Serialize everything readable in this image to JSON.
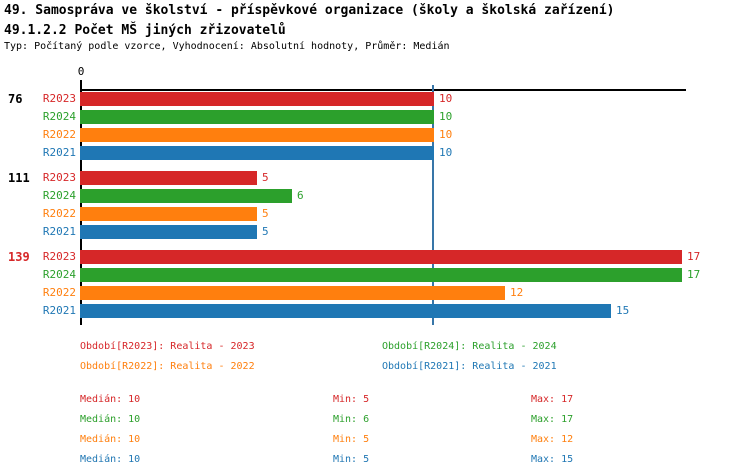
{
  "header": {
    "title": "49. Samospráva ve školství - příspěvkové organizace (školy a školská zařízení)",
    "subtitle": "49.1.2.2 Počet MŠ jiných zřizovatelů",
    "meta": "Typ: Počítaný podle vzorce, Vyhodnocení: Absolutní hodnoty, Průměr: Medián"
  },
  "colors": {
    "r2023": "#d62728",
    "r2024": "#2ca02c",
    "r2022": "#ff7f0e",
    "r2021": "#1f77b4",
    "axis": "#000000",
    "median_line": "#3876a8",
    "text": "#000000",
    "highlight_group_label": "#d62728"
  },
  "chart_data": {
    "type": "bar",
    "orientation": "horizontal",
    "title": "49.1.2.2 Počet MŠ jiných zřizovatelů",
    "x_axis": {
      "zero_label": "0",
      "min": 0,
      "max": 17
    },
    "median_line_value": 10,
    "grid": false,
    "legend_position": "bottom",
    "series_order": [
      "R2023",
      "R2024",
      "R2022",
      "R2021"
    ],
    "groups": [
      {
        "label": "76",
        "label_color": "#000000",
        "bars": [
          {
            "series": "R2023",
            "value": 10,
            "color": "#d62728"
          },
          {
            "series": "R2024",
            "value": 10,
            "color": "#2ca02c"
          },
          {
            "series": "R2022",
            "value": 10,
            "color": "#ff7f0e"
          },
          {
            "series": "R2021",
            "value": 10,
            "color": "#1f77b4"
          }
        ]
      },
      {
        "label": "111",
        "label_color": "#000000",
        "bars": [
          {
            "series": "R2023",
            "value": 5,
            "color": "#d62728"
          },
          {
            "series": "R2024",
            "value": 6,
            "color": "#2ca02c"
          },
          {
            "series": "R2022",
            "value": 5,
            "color": "#ff7f0e"
          },
          {
            "series": "R2021",
            "value": 5,
            "color": "#1f77b4"
          }
        ]
      },
      {
        "label": "139",
        "label_color": "#d62728",
        "bars": [
          {
            "series": "R2023",
            "value": 17,
            "color": "#d62728"
          },
          {
            "series": "R2024",
            "value": 17,
            "color": "#2ca02c"
          },
          {
            "series": "R2022",
            "value": 12,
            "color": "#ff7f0e"
          },
          {
            "series": "R2021",
            "value": 15,
            "color": "#1f77b4"
          }
        ]
      }
    ]
  },
  "legend": {
    "items": [
      {
        "label": "Období[R2023]: Realita - 2023",
        "color": "#d62728"
      },
      {
        "label": "Období[R2024]: Realita - 2024",
        "color": "#2ca02c"
      },
      {
        "label": "Období[R2022]: Realita - 2022",
        "color": "#ff7f0e"
      },
      {
        "label": "Období[R2021]: Realita - 2021",
        "color": "#1f77b4"
      }
    ]
  },
  "stats": {
    "labels": {
      "median": "Medián",
      "min": "Min",
      "max": "Max"
    },
    "rows": [
      {
        "series": "R2023",
        "median": "10",
        "min": "5",
        "max": "17",
        "color": "#d62728"
      },
      {
        "series": "R2024",
        "median": "10",
        "min": "6",
        "max": "17",
        "color": "#2ca02c"
      },
      {
        "series": "R2022",
        "median": "10",
        "min": "5",
        "max": "12",
        "color": "#ff7f0e"
      },
      {
        "series": "R2021",
        "median": "10",
        "min": "5",
        "max": "15",
        "color": "#1f77b4"
      }
    ]
  }
}
